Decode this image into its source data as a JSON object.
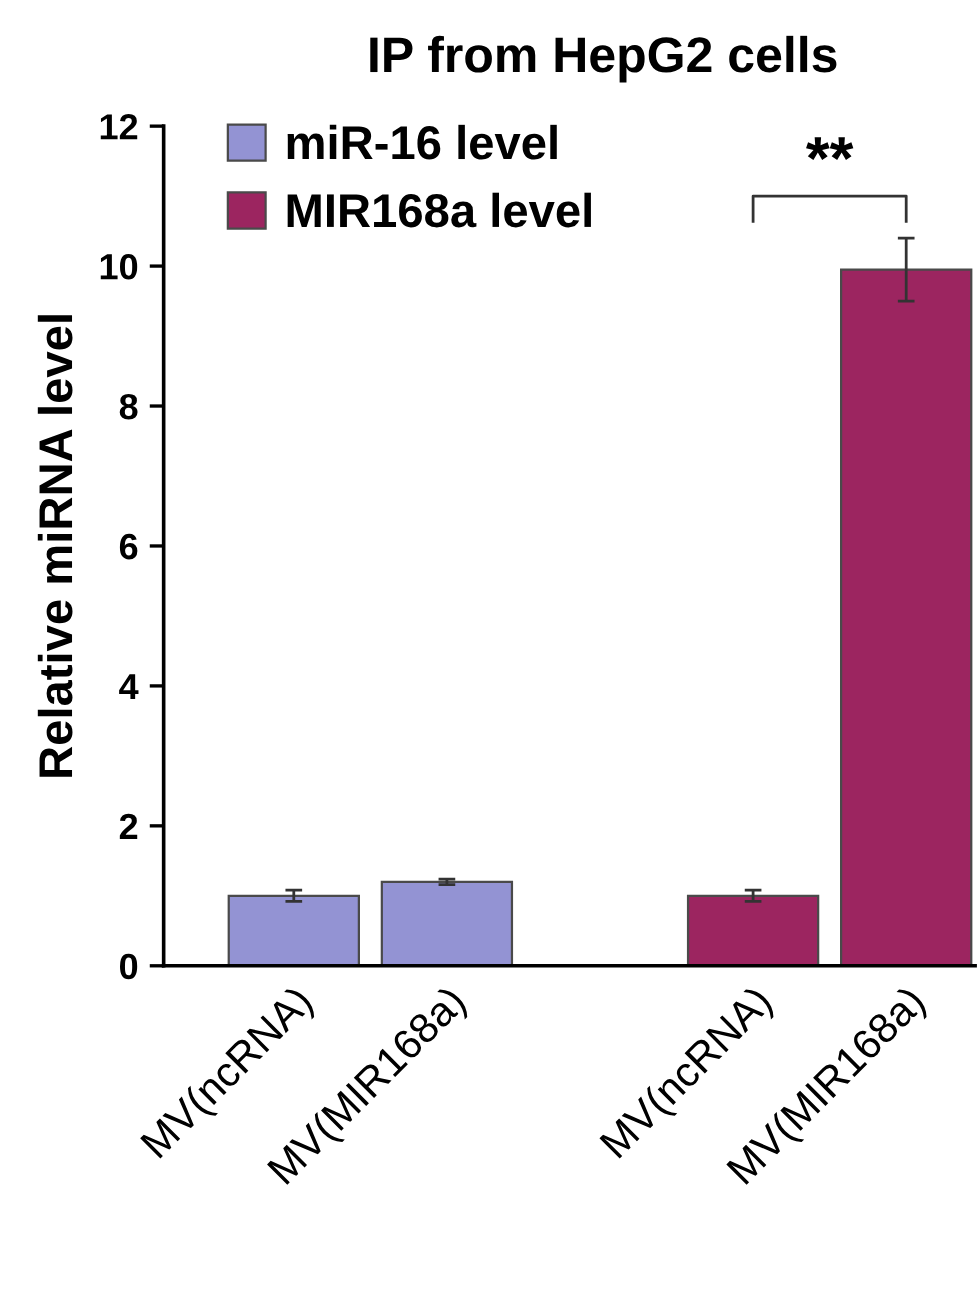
{
  "chart_data": {
    "type": "bar",
    "title": "IP from HepG2 cells",
    "ylabel": "Relative miRNA level",
    "categories": [
      "MV(ncRNA)",
      "MV(MIR168a)",
      null,
      "MV(ncRNA)",
      "MV(MIR168a)"
    ],
    "series": [
      {
        "name": "miR-16 level",
        "color": "#9393d3",
        "values": [
          1.0,
          1.2,
          null,
          null,
          null
        ],
        "errors": [
          0.08,
          0.04,
          null,
          null,
          null
        ]
      },
      {
        "name": "MIR168a level",
        "color": "#9c2560",
        "values": [
          null,
          null,
          null,
          1.0,
          9.95
        ],
        "errors": [
          null,
          null,
          null,
          0.08,
          0.45
        ]
      }
    ],
    "ylim": [
      0,
      12
    ],
    "yticks": [
      0,
      2,
      4,
      6,
      8,
      10,
      12
    ],
    "legend": "top left",
    "grid": false,
    "annotations": [
      "**"
    ]
  }
}
